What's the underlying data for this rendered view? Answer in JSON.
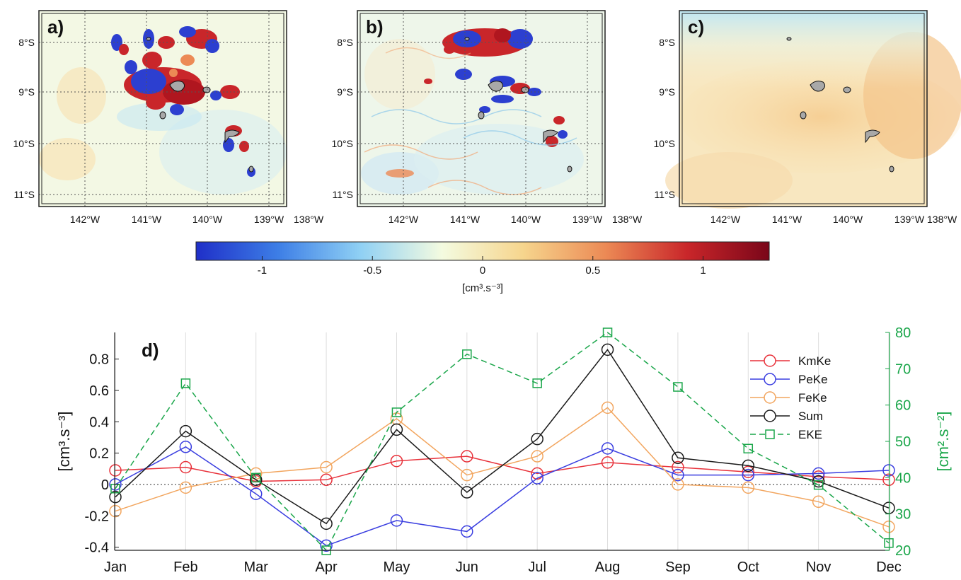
{
  "maps": [
    {
      "label": "a)"
    },
    {
      "label": "b)"
    },
    {
      "label": "c)"
    }
  ],
  "map_axes": {
    "x_ticks": [
      "142°W",
      "141°W",
      "140°W",
      "139°W",
      "138°W"
    ],
    "y_ticks": [
      "8°S",
      "9°S",
      "10°S",
      "11°S"
    ]
  },
  "colorbar": {
    "ticks": [
      "-1",
      "-0.5",
      "0",
      "0.5",
      "1"
    ],
    "tick_values": [
      -1,
      -0.5,
      0,
      0.5,
      1
    ],
    "range": [
      -1.3,
      1.3
    ],
    "unit": "[cm³.s⁻³]",
    "colors": [
      "#1f2fc8",
      "#3d7ee6",
      "#8fd0f4",
      "#f4fbe0",
      "#f6d58d",
      "#ec8a55",
      "#c9262a",
      "#7a0619"
    ]
  },
  "chart_data": {
    "type": "line",
    "panel_label": "d)",
    "categories": [
      "Jan",
      "Feb",
      "Mar",
      "Apr",
      "May",
      "Jun",
      "Jul",
      "Aug",
      "Sep",
      "Oct",
      "Nov",
      "Dec"
    ],
    "ylabel_left": "[cm³.s⁻³]",
    "ylabel_right": "[cm².s⁻²]",
    "ylim_left": [
      -0.42,
      0.97
    ],
    "ylim_right": [
      20,
      80
    ],
    "yticks_left": [
      "-0.4",
      "-0.2",
      "0",
      "0.2",
      "0.4",
      "0.6",
      "0.8"
    ],
    "yticks_left_values": [
      -0.4,
      -0.2,
      0,
      0.2,
      0.4,
      0.6,
      0.8
    ],
    "yticks_right": [
      "20",
      "30",
      "40",
      "50",
      "60",
      "70",
      "80"
    ],
    "yticks_right_values": [
      20,
      30,
      40,
      50,
      60,
      70,
      80
    ],
    "zero_line": "dotted",
    "grid_x": true,
    "legend_position": "top-right",
    "series": [
      {
        "name": "KmKe",
        "axis": "left",
        "color": "#e8313a",
        "marker": "circle",
        "dash": "solid",
        "values": [
          0.09,
          0.11,
          0.02,
          0.03,
          0.15,
          0.18,
          0.07,
          0.14,
          0.11,
          0.08,
          0.05,
          0.03
        ]
      },
      {
        "name": "PeKe",
        "axis": "left",
        "color": "#3a3ee0",
        "marker": "circle",
        "dash": "solid",
        "values": [
          0.0,
          0.24,
          -0.06,
          -0.39,
          -0.23,
          -0.3,
          0.04,
          0.23,
          0.06,
          0.06,
          0.07,
          0.09
        ]
      },
      {
        "name": "FeKe",
        "axis": "left",
        "color": "#f2a55e",
        "marker": "circle",
        "dash": "solid",
        "values": [
          -0.17,
          -0.02,
          0.07,
          0.11,
          0.42,
          0.06,
          0.18,
          0.49,
          0.0,
          -0.02,
          -0.11,
          -0.27
        ]
      },
      {
        "name": "Sum",
        "axis": "left",
        "color": "#1a1a1a",
        "marker": "circle",
        "dash": "solid",
        "values": [
          -0.08,
          0.34,
          0.03,
          -0.25,
          0.35,
          -0.05,
          0.29,
          0.86,
          0.17,
          0.12,
          0.02,
          -0.15
        ]
      },
      {
        "name": "EKE",
        "axis": "right",
        "color": "#1aa64a",
        "marker": "square",
        "dash": "dashed",
        "values": [
          37,
          66,
          40,
          20,
          58,
          74,
          66,
          80,
          65,
          48,
          38,
          22
        ]
      }
    ]
  }
}
